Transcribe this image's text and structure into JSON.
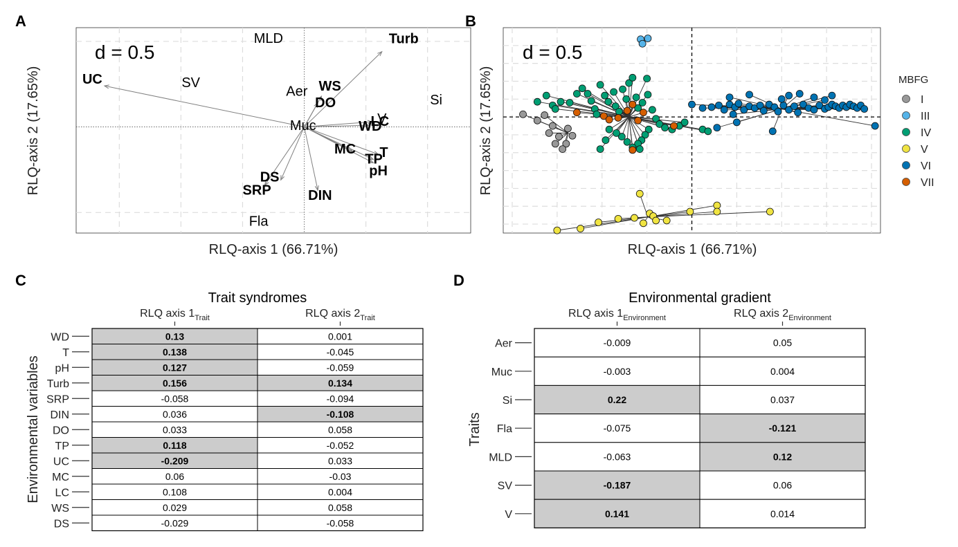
{
  "panels": {
    "A": {
      "label": "A",
      "d_label": "d = 0.5",
      "xlabel": "RLQ-axis 1 (66.71%)",
      "ylabel": "RLQ-axis 2 (17.65%)"
    },
    "B": {
      "label": "B",
      "d_label": "d = 0.5",
      "xlabel": "RLQ-axis 1 (66.71%)",
      "ylabel": "RLQ-axis 2 (17.65%)",
      "legend_title": "MBFG"
    },
    "C": {
      "label": "C",
      "title": "Trait syndromes",
      "ylabel": "Environmental variables"
    },
    "D": {
      "label": "D",
      "title": "Environmental gradient",
      "ylabel": "Traits"
    }
  },
  "chart_data": [
    {
      "panel": "A",
      "type": "scatter",
      "description_of_marks": "RLQ biplot of trait labels (plain) and environmental arrows (bold)",
      "d_scale": 0.5,
      "xlim": [
        -1.85,
        1.35
      ],
      "ylim": [
        -0.62,
        0.58
      ],
      "trait_labels": [
        {
          "label": "MLD",
          "x": -0.29,
          "y": 0.52
        },
        {
          "label": "SV",
          "x": -0.92,
          "y": 0.26
        },
        {
          "label": "Aer",
          "x": -0.06,
          "y": 0.21
        },
        {
          "label": "Si",
          "x": 1.07,
          "y": 0.16
        },
        {
          "label": "Muc",
          "x": -0.01,
          "y": 0.01
        },
        {
          "label": "V",
          "x": 0.63,
          "y": 0.05
        },
        {
          "label": "Fla",
          "x": -0.37,
          "y": -0.55
        }
      ],
      "env_arrows": [
        {
          "label": "UC",
          "x": -1.62,
          "y": 0.24
        },
        {
          "label": "Turb",
          "x": 0.63,
          "y": 0.44
        },
        {
          "label": "WS",
          "x": 0.14,
          "y": 0.18
        },
        {
          "label": "DO",
          "x": 0.11,
          "y": 0.14
        },
        {
          "label": "LC",
          "x": 0.55,
          "y": 0.03
        },
        {
          "label": "WD",
          "x": 0.52,
          "y": 0.01
        },
        {
          "label": "MC",
          "x": 0.39,
          "y": -0.14
        },
        {
          "label": "T",
          "x": 0.6,
          "y": -0.16
        },
        {
          "label": "TP",
          "x": 0.56,
          "y": -0.19
        },
        {
          "label": "pH",
          "x": 0.56,
          "y": -0.21
        },
        {
          "label": "DS",
          "x": -0.19,
          "y": -0.31
        },
        {
          "label": "SRP",
          "x": -0.32,
          "y": -0.34
        },
        {
          "label": "DIN",
          "x": 0.11,
          "y": -0.37
        }
      ]
    },
    {
      "panel": "B",
      "type": "scatter",
      "description_of_marks": "species scores joined to group centroids",
      "xlim": [
        -2.1,
        2.1
      ],
      "ylim": [
        -1.3,
        1.0
      ],
      "groups": [
        {
          "name": "I",
          "color": "#999999",
          "centroid": [
            -1.38,
            -0.18
          ],
          "points": [
            [
              -1.88,
              0.03
            ],
            [
              -1.72,
              -0.04
            ],
            [
              -1.64,
              0.02
            ],
            [
              -1.59,
              -0.18
            ],
            [
              -1.55,
              -0.1
            ],
            [
              -1.52,
              -0.3
            ],
            [
              -1.48,
              -0.22
            ],
            [
              -1.4,
              -0.3
            ],
            [
              -1.44,
              -0.36
            ],
            [
              -1.38,
              -0.13
            ],
            [
              -1.33,
              -0.21
            ]
          ]
        },
        {
          "name": "III",
          "color": "#56B4E9",
          "centroid": [
            -0.53,
            0.85
          ],
          "points": [
            [
              -0.57,
              0.87
            ],
            [
              -0.49,
              0.88
            ],
            [
              -0.55,
              0.82
            ]
          ]
        },
        {
          "name": "IV",
          "color": "#009E73",
          "centroid": [
            -0.7,
            0.0
          ],
          "points": [
            [
              -1.72,
              0.17
            ],
            [
              -1.62,
              0.24
            ],
            [
              -1.55,
              0.13
            ],
            [
              -1.52,
              0.09
            ],
            [
              -1.46,
              0.17
            ],
            [
              -1.36,
              0.16
            ],
            [
              -1.28,
              0.26
            ],
            [
              -1.22,
              0.32
            ],
            [
              -1.16,
              0.26
            ],
            [
              -1.12,
              0.18
            ],
            [
              -1.08,
              0.09
            ],
            [
              -1.06,
              0.03
            ],
            [
              -1.02,
              0.36
            ],
            [
              -0.97,
              0.24
            ],
            [
              -0.93,
              0.17
            ],
            [
              -0.87,
              0.28
            ],
            [
              -0.85,
              0.12
            ],
            [
              -0.81,
              0.06
            ],
            [
              -0.77,
              0.31
            ],
            [
              -0.73,
              0.2
            ],
            [
              -0.7,
              0.38
            ],
            [
              -0.66,
              0.44
            ],
            [
              -0.62,
              0.22
            ],
            [
              -0.6,
              0.1
            ],
            [
              -0.55,
              0.16
            ],
            [
              -0.5,
              0.43
            ],
            [
              -0.49,
              0.25
            ],
            [
              -0.44,
              0.08
            ],
            [
              -0.4,
              -0.02
            ],
            [
              -0.36,
              -0.08
            ],
            [
              -0.3,
              -0.12
            ],
            [
              -0.22,
              -0.14
            ],
            [
              -0.14,
              -0.1
            ],
            [
              -0.08,
              -0.06
            ],
            [
              0.12,
              -0.14
            ],
            [
              0.18,
              -0.16
            ],
            [
              -0.48,
              -0.14
            ],
            [
              -0.52,
              -0.2
            ],
            [
              -0.56,
              -0.26
            ],
            [
              -0.6,
              -0.3
            ],
            [
              -0.66,
              -0.34
            ],
            [
              -0.72,
              -0.28
            ],
            [
              -0.78,
              -0.22
            ],
            [
              -0.84,
              -0.18
            ],
            [
              -0.92,
              -0.14
            ],
            [
              -0.96,
              -0.26
            ],
            [
              -1.02,
              -0.36
            ],
            [
              -0.58,
              -0.36
            ]
          ]
        },
        {
          "name": "V",
          "color": "#F0E442",
          "centroid": [
            -0.49,
            -1.12
          ],
          "points": [
            [
              -1.5,
              -1.27
            ],
            [
              -1.24,
              -1.25
            ],
            [
              -1.04,
              -1.18
            ],
            [
              -0.82,
              -1.14
            ],
            [
              -0.64,
              -1.13
            ],
            [
              -0.54,
              -1.19
            ],
            [
              -0.47,
              -1.08
            ],
            [
              -0.43,
              -1.11
            ],
            [
              -0.4,
              -1.16
            ],
            [
              -0.28,
              -1.16
            ],
            [
              -0.58,
              -0.86
            ],
            [
              -0.02,
              -1.06
            ],
            [
              0.28,
              -0.99
            ],
            [
              0.87,
              -1.06
            ],
            [
              0.28,
              -1.06
            ]
          ]
        },
        {
          "name": "VI",
          "color": "#0072B2",
          "centroid": [
            1.0,
            0.09
          ],
          "points": [
            [
              0.0,
              0.14
            ],
            [
              0.12,
              0.1
            ],
            [
              0.22,
              0.11
            ],
            [
              0.3,
              0.13
            ],
            [
              0.36,
              0.08
            ],
            [
              0.42,
              0.14
            ],
            [
              0.48,
              0.11
            ],
            [
              0.52,
              0.15
            ],
            [
              0.58,
              0.08
            ],
            [
              0.64,
              0.12
            ],
            [
              0.7,
              0.1
            ],
            [
              0.76,
              0.13
            ],
            [
              0.8,
              0.07
            ],
            [
              0.86,
              0.14
            ],
            [
              0.92,
              0.11
            ],
            [
              0.96,
              0.06
            ],
            [
              1.02,
              0.13
            ],
            [
              1.08,
              0.08
            ],
            [
              1.14,
              0.12
            ],
            [
              1.18,
              0.05
            ],
            [
              1.24,
              0.14
            ],
            [
              1.3,
              0.1
            ],
            [
              1.36,
              0.08
            ],
            [
              1.42,
              0.13
            ],
            [
              1.48,
              0.09
            ],
            [
              1.52,
              0.11
            ],
            [
              1.56,
              0.14
            ],
            [
              1.6,
              0.12
            ],
            [
              1.64,
              0.1
            ],
            [
              1.68,
              0.13
            ],
            [
              1.72,
              0.11
            ],
            [
              1.76,
              0.14
            ],
            [
              1.8,
              0.12
            ],
            [
              1.84,
              0.1
            ],
            [
              1.88,
              0.13
            ],
            [
              1.92,
              0.09
            ],
            [
              2.04,
              -0.1
            ],
            [
              0.64,
              0.25
            ],
            [
              0.42,
              0.22
            ],
            [
              1.0,
              0.2
            ],
            [
              1.2,
              0.26
            ],
            [
              1.36,
              0.22
            ],
            [
              1.56,
              0.24
            ],
            [
              0.28,
              -0.12
            ],
            [
              0.5,
              -0.06
            ],
            [
              0.9,
              -0.16
            ],
            [
              0.46,
              0.03
            ],
            [
              1.08,
              0.24
            ],
            [
              1.48,
              0.19
            ]
          ]
        },
        {
          "name": "VII",
          "color": "#D55E00",
          "centroid": [
            -0.7,
            0.0
          ],
          "points": [
            [
              -1.28,
              0.05
            ],
            [
              -0.98,
              0.01
            ],
            [
              -0.92,
              -0.03
            ],
            [
              -0.82,
              -0.01
            ],
            [
              -0.72,
              0.07
            ],
            [
              -0.66,
              0.14
            ],
            [
              -0.6,
              -0.04
            ],
            [
              -0.54,
              0.05
            ],
            [
              -0.66,
              -0.37
            ],
            [
              -0.2,
              -0.1
            ]
          ]
        }
      ]
    },
    {
      "panel": "C",
      "type": "table",
      "columns": [
        {
          "main": "RLQ axis 1",
          "sub": "Trait"
        },
        {
          "main": "RLQ axis 2",
          "sub": "Trait"
        }
      ],
      "rows": [
        {
          "label": "WD",
          "values": [
            "0.13",
            "0.001"
          ],
          "highlight": [
            true,
            false
          ]
        },
        {
          "label": "T",
          "values": [
            "0.138",
            "-0.045"
          ],
          "highlight": [
            true,
            false
          ]
        },
        {
          "label": "pH",
          "values": [
            "0.127",
            "-0.059"
          ],
          "highlight": [
            true,
            false
          ]
        },
        {
          "label": "Turb",
          "values": [
            "0.156",
            "0.134"
          ],
          "highlight": [
            true,
            true
          ]
        },
        {
          "label": "SRP",
          "values": [
            "-0.058",
            "-0.094"
          ],
          "highlight": [
            false,
            false
          ]
        },
        {
          "label": "DIN",
          "values": [
            "0.036",
            "-0.108"
          ],
          "highlight": [
            false,
            true
          ]
        },
        {
          "label": "DO",
          "values": [
            "0.033",
            "0.058"
          ],
          "highlight": [
            false,
            false
          ]
        },
        {
          "label": "TP",
          "values": [
            "0.118",
            "-0.052"
          ],
          "highlight": [
            true,
            false
          ]
        },
        {
          "label": "UC",
          "values": [
            "-0.209",
            "0.033"
          ],
          "highlight": [
            true,
            false
          ]
        },
        {
          "label": "MC",
          "values": [
            "0.06",
            "-0.03"
          ],
          "highlight": [
            false,
            false
          ]
        },
        {
          "label": "LC",
          "values": [
            "0.108",
            "0.004"
          ],
          "highlight": [
            false,
            false
          ]
        },
        {
          "label": "WS",
          "values": [
            "0.029",
            "0.058"
          ],
          "highlight": [
            false,
            false
          ]
        },
        {
          "label": "DS",
          "values": [
            "-0.029",
            "-0.058"
          ],
          "highlight": [
            false,
            false
          ]
        }
      ]
    },
    {
      "panel": "D",
      "type": "table",
      "columns": [
        {
          "main": "RLQ axis 1",
          "sub": "Environment"
        },
        {
          "main": "RLQ axis 2",
          "sub": "Environment"
        }
      ],
      "rows": [
        {
          "label": "Aer",
          "values": [
            "-0.009",
            "0.05"
          ],
          "highlight": [
            false,
            false
          ]
        },
        {
          "label": "Muc",
          "values": [
            "-0.003",
            "0.004"
          ],
          "highlight": [
            false,
            false
          ]
        },
        {
          "label": "Si",
          "values": [
            "0.22",
            "0.037"
          ],
          "highlight": [
            true,
            false
          ]
        },
        {
          "label": "Fla",
          "values": [
            "-0.075",
            "-0.121"
          ],
          "highlight": [
            false,
            true
          ]
        },
        {
          "label": "MLD",
          "values": [
            "-0.063",
            "0.12"
          ],
          "highlight": [
            false,
            true
          ]
        },
        {
          "label": "SV",
          "values": [
            "-0.187",
            "0.06"
          ],
          "highlight": [
            true,
            false
          ]
        },
        {
          "label": "V",
          "values": [
            "0.141",
            "0.014"
          ],
          "highlight": [
            true,
            false
          ]
        }
      ]
    }
  ],
  "colors": {
    "highlight_cell": "#cccccc",
    "arrow": "#808080",
    "grid": "#dddddd"
  }
}
